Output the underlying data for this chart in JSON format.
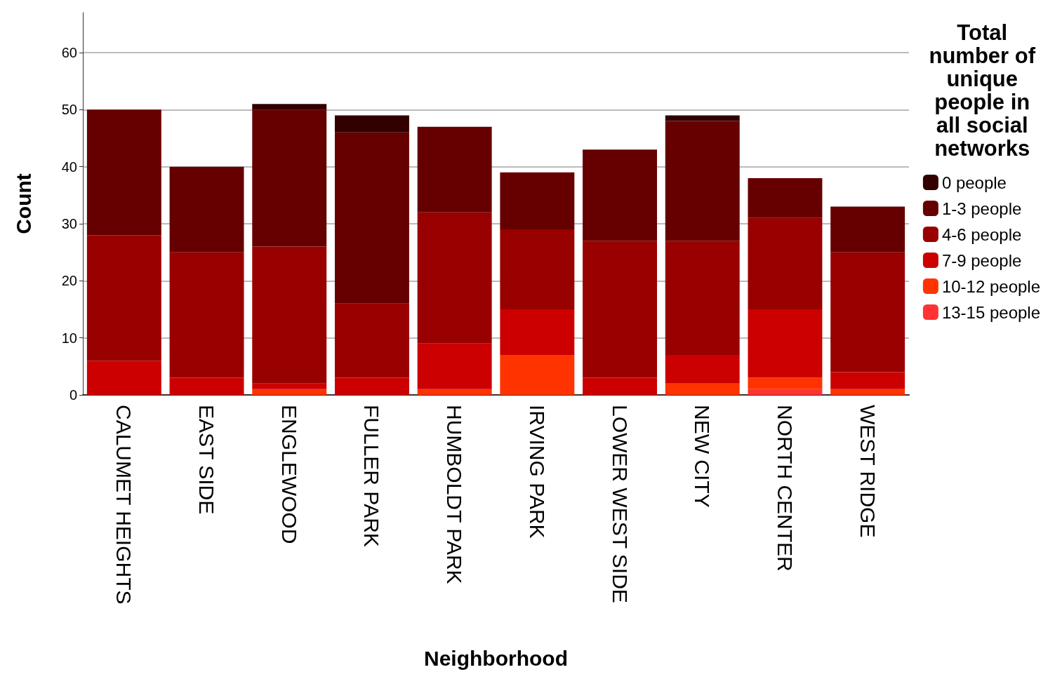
{
  "chart_data": {
    "type": "bar",
    "stacked": true,
    "xlabel": "Neighborhood",
    "ylabel": "Count",
    "legend_title": "Total\nnumber of\nunique\npeople in\nall social\nnetworks",
    "legend": "right",
    "categories": [
      "CALUMET HEIGHTS",
      "EAST SIDE",
      "ENGLEWOOD",
      "FULLER PARK",
      "HUMBOLDT PARK",
      "IRVING PARK",
      "LOWER WEST SIDE",
      "NEW CITY",
      "NORTH CENTER",
      "WEST RIDGE"
    ],
    "series": [
      {
        "name": "13-15 people",
        "color": "#ff3333",
        "values": [
          0,
          0,
          0,
          0,
          0,
          0,
          0,
          0,
          1,
          0
        ]
      },
      {
        "name": "10-12 people",
        "color": "#ff3300",
        "values": [
          0,
          0,
          1,
          0,
          1,
          7,
          0,
          2,
          2,
          1
        ]
      },
      {
        "name": "7-9 people",
        "color": "#cc0000",
        "values": [
          6,
          3,
          1,
          3,
          8,
          8,
          3,
          5,
          12,
          3
        ]
      },
      {
        "name": "4-6 people",
        "color": "#990000",
        "values": [
          22,
          22,
          24,
          13,
          23,
          14,
          24,
          20,
          16,
          21
        ]
      },
      {
        "name": "1-3 people",
        "color": "#660000",
        "values": [
          22,
          15,
          24,
          30,
          15,
          10,
          16,
          21,
          7,
          8
        ]
      },
      {
        "name": "0 people",
        "color": "#330000",
        "values": [
          0,
          0,
          1,
          3,
          0,
          0,
          0,
          1,
          0,
          0
        ]
      }
    ],
    "ylim": [
      0,
      67
    ],
    "yticks": [
      0,
      10,
      20,
      30,
      40,
      50,
      60
    ],
    "grid": "y"
  }
}
